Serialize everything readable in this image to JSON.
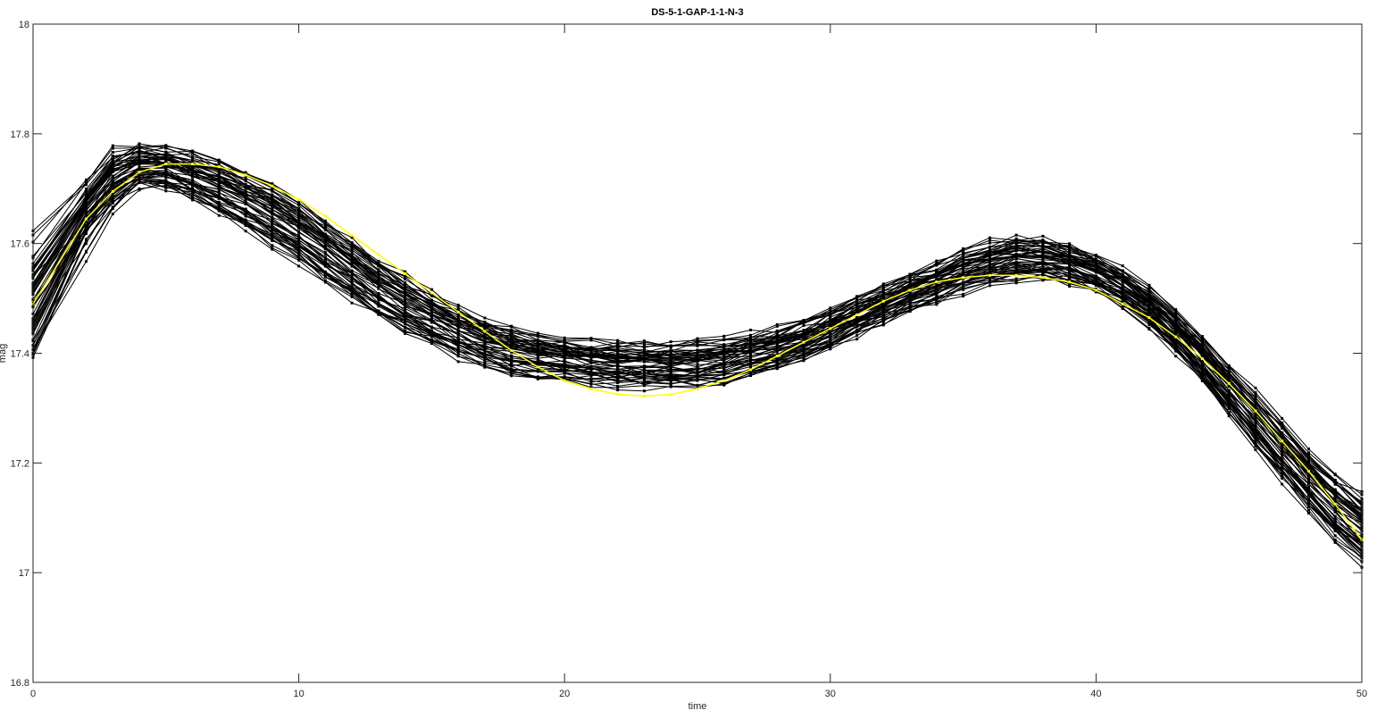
{
  "chart_data": {
    "type": "line",
    "title": "DS-5-1-GAP-1-1-N-3",
    "xlabel": "time",
    "ylabel": "mag",
    "xlim": [
      0,
      50
    ],
    "ylim": [
      16.8,
      18
    ],
    "x_ticks": [
      0,
      10,
      20,
      30,
      40,
      50
    ],
    "x_tick_labels": [
      "0",
      "10",
      "20",
      "30",
      "40",
      "50"
    ],
    "y_ticks": [
      16.8,
      17,
      17.2,
      17.4,
      17.6,
      17.8,
      18
    ],
    "y_tick_labels": [
      "16.8",
      "17",
      "17.2",
      "17.4",
      "17.6",
      "17.8",
      "18"
    ],
    "grid": false,
    "series_color": "#000000",
    "highlight_color": "#ffff00",
    "sample_times": [
      0,
      2,
      3,
      4,
      5,
      6,
      7,
      8,
      9,
      10,
      11,
      12,
      13,
      14,
      15,
      16,
      17,
      18,
      19,
      20,
      21,
      22,
      23,
      24,
      25,
      26,
      27,
      28,
      29,
      30,
      31,
      32,
      33,
      34,
      35,
      36,
      37,
      38,
      39,
      40,
      41,
      42,
      43,
      44,
      45,
      46,
      47,
      48,
      49,
      50
    ],
    "mean_series": {
      "x": [
        0,
        2,
        3,
        4,
        5,
        6,
        7,
        8,
        9,
        10,
        11,
        12,
        13,
        14,
        15,
        16,
        17,
        18,
        19,
        20,
        21,
        22,
        23,
        24,
        25,
        26,
        27,
        28,
        29,
        30,
        31,
        32,
        33,
        34,
        35,
        36,
        37,
        38,
        39,
        40,
        41,
        42,
        43,
        44,
        45,
        46,
        47,
        48,
        49,
        50
      ],
      "y": [
        17.49,
        17.645,
        17.695,
        17.73,
        17.745,
        17.745,
        17.74,
        17.725,
        17.705,
        17.68,
        17.65,
        17.615,
        17.58,
        17.545,
        17.51,
        17.475,
        17.44,
        17.405,
        17.375,
        17.35,
        17.335,
        17.325,
        17.322,
        17.325,
        17.335,
        17.35,
        17.37,
        17.395,
        17.42,
        17.445,
        17.47,
        17.495,
        17.515,
        17.53,
        17.538,
        17.542,
        17.542,
        17.538,
        17.53,
        17.515,
        17.49,
        17.465,
        17.43,
        17.39,
        17.345,
        17.295,
        17.24,
        17.185,
        17.125,
        17.06
      ]
    },
    "band_center": [
      17.49,
      17.66,
      17.72,
      17.745,
      17.74,
      17.725,
      17.705,
      17.68,
      17.655,
      17.625,
      17.59,
      17.555,
      17.52,
      17.49,
      17.465,
      17.44,
      17.42,
      17.405,
      17.395,
      17.39,
      17.385,
      17.382,
      17.38,
      17.38,
      17.382,
      17.388,
      17.398,
      17.41,
      17.425,
      17.445,
      17.468,
      17.49,
      17.51,
      17.53,
      17.55,
      17.565,
      17.575,
      17.575,
      17.565,
      17.545,
      17.52,
      17.485,
      17.44,
      17.39,
      17.335,
      17.28,
      17.225,
      17.17,
      17.12,
      17.08
    ],
    "band_spread": [
      0.1,
      0.05,
      0.05,
      0.04,
      0.04,
      0.045,
      0.05,
      0.055,
      0.06,
      0.06,
      0.06,
      0.06,
      0.058,
      0.055,
      0.052,
      0.05,
      0.048,
      0.045,
      0.043,
      0.042,
      0.042,
      0.042,
      0.042,
      0.042,
      0.042,
      0.042,
      0.04,
      0.038,
      0.036,
      0.035,
      0.035,
      0.035,
      0.035,
      0.036,
      0.038,
      0.04,
      0.042,
      0.04,
      0.038,
      0.036,
      0.035,
      0.036,
      0.04,
      0.045,
      0.05,
      0.055,
      0.058,
      0.06,
      0.065,
      0.07
    ],
    "series_count": 60
  }
}
